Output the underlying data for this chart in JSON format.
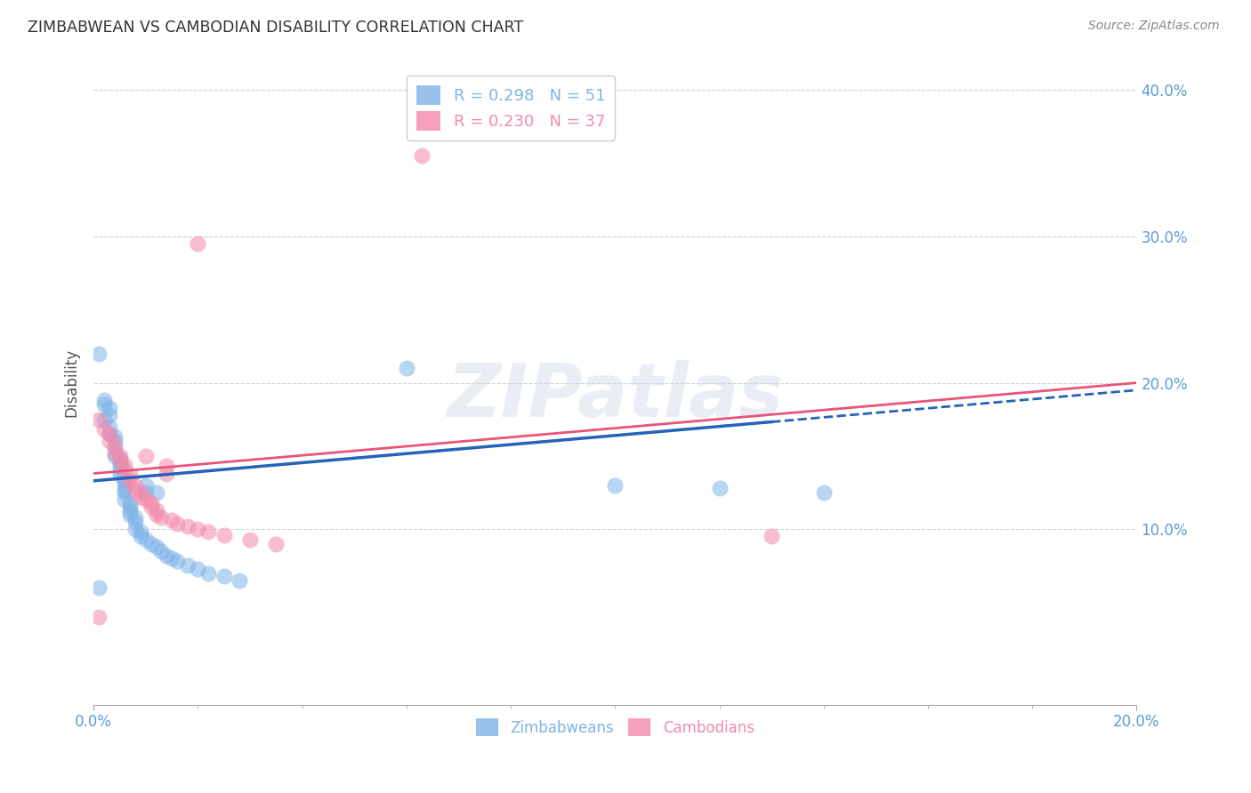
{
  "title": "ZIMBABWEAN VS CAMBODIAN DISABILITY CORRELATION CHART",
  "source": "Source: ZipAtlas.com",
  "ylabel": "Disability",
  "xmin": 0.0,
  "xmax": 0.2,
  "ymin": -0.02,
  "ymax": 0.42,
  "x_tick_labels": [
    "0.0%",
    "",
    "",
    "",
    "",
    "",
    "",
    "",
    "",
    "20.0%"
  ],
  "y_tick_labels": [
    "10.0%",
    "20.0%",
    "30.0%",
    "40.0%"
  ],
  "y_ticks": [
    0.1,
    0.2,
    0.3,
    0.4
  ],
  "legend_line1": "R = 0.298   N = 51",
  "legend_line2": "R = 0.230   N = 37",
  "legend_footer": [
    "Zimbabweans",
    "Cambodians"
  ],
  "watermark_text": "ZIPatlas",
  "background_color": "#ffffff",
  "grid_color": "#cccccc",
  "zim_color": "#7eb3e8",
  "cam_color": "#f48aaa",
  "title_color": "#333333",
  "source_color": "#888888",
  "tick_color": "#5b9bd5",
  "zim_line_color": "#2563b8",
  "cam_line_color": "#e8547a",
  "zim_points_x": [
    0.001,
    0.002,
    0.002,
    0.002,
    0.003,
    0.003,
    0.003,
    0.003,
    0.004,
    0.004,
    0.004,
    0.004,
    0.005,
    0.005,
    0.005,
    0.005,
    0.005,
    0.006,
    0.006,
    0.006,
    0.006,
    0.006,
    0.007,
    0.007,
    0.007,
    0.007,
    0.008,
    0.008,
    0.008,
    0.009,
    0.009,
    0.01,
    0.01,
    0.01,
    0.011,
    0.012,
    0.012,
    0.013,
    0.014,
    0.015,
    0.016,
    0.018,
    0.02,
    0.022,
    0.025,
    0.028,
    0.06,
    0.1,
    0.12,
    0.14,
    0.001
  ],
  "zim_points_y": [
    0.22,
    0.188,
    0.185,
    0.175,
    0.183,
    0.178,
    0.17,
    0.165,
    0.163,
    0.16,
    0.155,
    0.15,
    0.148,
    0.145,
    0.143,
    0.14,
    0.137,
    0.133,
    0.13,
    0.127,
    0.125,
    0.12,
    0.118,
    0.115,
    0.112,
    0.11,
    0.108,
    0.105,
    0.1,
    0.098,
    0.095,
    0.093,
    0.13,
    0.125,
    0.09,
    0.088,
    0.125,
    0.085,
    0.082,
    0.08,
    0.078,
    0.075,
    0.073,
    0.07,
    0.068,
    0.065,
    0.21,
    0.13,
    0.128,
    0.125,
    0.06
  ],
  "cam_points_x": [
    0.063,
    0.02,
    0.001,
    0.002,
    0.003,
    0.003,
    0.004,
    0.004,
    0.005,
    0.005,
    0.006,
    0.006,
    0.007,
    0.007,
    0.008,
    0.008,
    0.009,
    0.009,
    0.01,
    0.01,
    0.011,
    0.011,
    0.012,
    0.012,
    0.013,
    0.014,
    0.014,
    0.015,
    0.016,
    0.018,
    0.02,
    0.022,
    0.025,
    0.03,
    0.035,
    0.13,
    0.001
  ],
  "cam_points_y": [
    0.355,
    0.295,
    0.175,
    0.168,
    0.165,
    0.16,
    0.157,
    0.152,
    0.15,
    0.147,
    0.144,
    0.14,
    0.137,
    0.133,
    0.13,
    0.127,
    0.125,
    0.122,
    0.15,
    0.12,
    0.118,
    0.115,
    0.113,
    0.11,
    0.108,
    0.143,
    0.138,
    0.106,
    0.104,
    0.102,
    0.1,
    0.098,
    0.096,
    0.093,
    0.09,
    0.095,
    0.04
  ],
  "zim_line_x": [
    0.0,
    0.2
  ],
  "zim_line_y": [
    0.133,
    0.195
  ],
  "cam_line_x": [
    0.0,
    0.2
  ],
  "cam_line_y": [
    0.138,
    0.2
  ],
  "zim_line_solid_end": 0.13,
  "cam_line_solid_end": 0.2
}
